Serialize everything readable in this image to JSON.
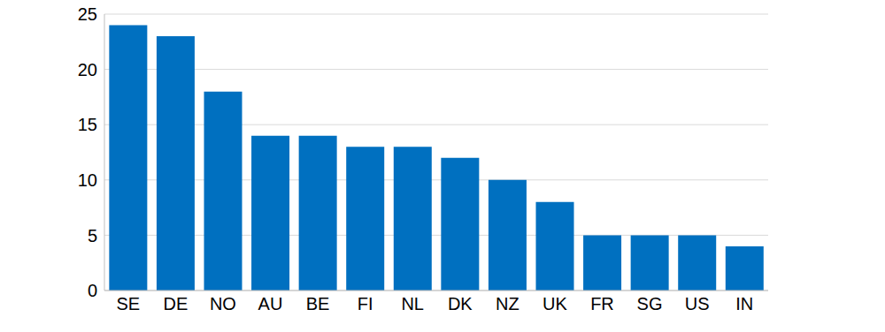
{
  "chart_data": {
    "type": "bar",
    "categories": [
      "SE",
      "DE",
      "NO",
      "AU",
      "BE",
      "FI",
      "NL",
      "DK",
      "NZ",
      "UK",
      "FR",
      "SG",
      "US",
      "IN"
    ],
    "values": [
      24,
      23,
      18,
      14,
      14,
      13,
      13,
      12,
      10,
      8,
      5,
      5,
      5,
      4
    ],
    "color": "#0070c0",
    "ylim": [
      0,
      25
    ],
    "yticks": [
      0,
      5,
      10,
      15,
      20,
      25
    ],
    "grid": true
  }
}
